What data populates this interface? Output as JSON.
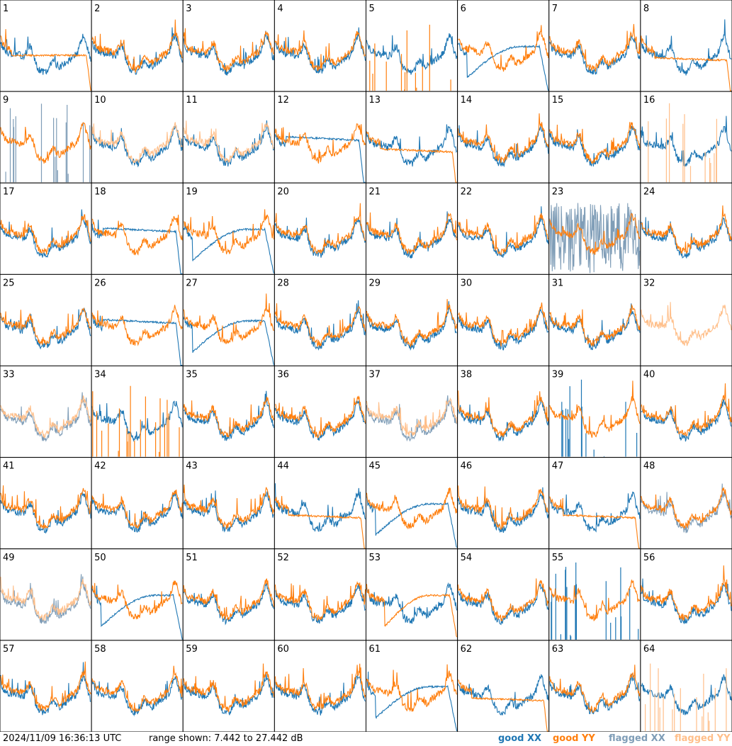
{
  "footer": {
    "timestamp": "2024/11/09 16:36:13 UTC",
    "range_label": "range shown: 7.442 to 27.442 dB"
  },
  "legend": [
    {
      "key": "good_xx",
      "label": "good XX",
      "color": "#1f77b4"
    },
    {
      "key": "good_yy",
      "label": "good YY",
      "color": "#ff7f0e"
    },
    {
      "key": "flagged_xx",
      "label": "flagged XX",
      "color": "#7f9db7"
    },
    {
      "key": "flagged_yy",
      "label": "flagged YY",
      "color": "#ffbf8a"
    }
  ],
  "chart_data": {
    "type": "line",
    "ylim": [
      7.442,
      27.442
    ],
    "grid": {
      "rows": 8,
      "cols": 8
    },
    "panels": [
      {
        "id": "1",
        "xx": "good",
        "yy": "good",
        "pattern": "dip_low"
      },
      {
        "id": "2",
        "xx": "good",
        "yy": "good",
        "pattern": "normal"
      },
      {
        "id": "3",
        "xx": "good",
        "yy": "good",
        "pattern": "normal"
      },
      {
        "id": "4",
        "xx": "good",
        "yy": "good",
        "pattern": "normal"
      },
      {
        "id": "5",
        "xx": "good",
        "yy": "good",
        "pattern": "yy_spikes"
      },
      {
        "id": "6",
        "xx": "good",
        "yy": "good",
        "pattern": "xx_dip"
      },
      {
        "id": "7",
        "xx": "good",
        "yy": "good",
        "pattern": "normal"
      },
      {
        "id": "8",
        "xx": "good",
        "yy": "good",
        "pattern": "yy_flat"
      },
      {
        "id": "9",
        "xx": "flagged",
        "yy": "good",
        "pattern": "xx_spikes"
      },
      {
        "id": "10",
        "xx": "good",
        "yy": "flagged",
        "pattern": "normal"
      },
      {
        "id": "11",
        "xx": "good",
        "yy": "flagged",
        "pattern": "normal"
      },
      {
        "id": "12",
        "xx": "good",
        "yy": "good",
        "pattern": "xx_flat"
      },
      {
        "id": "13",
        "xx": "good",
        "yy": "good",
        "pattern": "yy_flat"
      },
      {
        "id": "14",
        "xx": "good",
        "yy": "good",
        "pattern": "normal"
      },
      {
        "id": "15",
        "xx": "good",
        "yy": "good",
        "pattern": "normal"
      },
      {
        "id": "16",
        "xx": "good",
        "yy": "flagged",
        "pattern": "yy_spikes"
      },
      {
        "id": "17",
        "xx": "good",
        "yy": "good",
        "pattern": "normal"
      },
      {
        "id": "18",
        "xx": "good",
        "yy": "good",
        "pattern": "xx_flat"
      },
      {
        "id": "19",
        "xx": "good",
        "yy": "good",
        "pattern": "xx_dip"
      },
      {
        "id": "20",
        "xx": "good",
        "yy": "good",
        "pattern": "normal"
      },
      {
        "id": "21",
        "xx": "good",
        "yy": "good",
        "pattern": "normal"
      },
      {
        "id": "22",
        "xx": "good",
        "yy": "good",
        "pattern": "normal"
      },
      {
        "id": "23",
        "xx": "flagged",
        "yy": "good",
        "pattern": "xx_noise"
      },
      {
        "id": "24",
        "xx": "good",
        "yy": "good",
        "pattern": "normal"
      },
      {
        "id": "25",
        "xx": "good",
        "yy": "good",
        "pattern": "normal"
      },
      {
        "id": "26",
        "xx": "good",
        "yy": "good",
        "pattern": "xx_flat"
      },
      {
        "id": "27",
        "xx": "good",
        "yy": "good",
        "pattern": "xx_dip"
      },
      {
        "id": "28",
        "xx": "good",
        "yy": "good",
        "pattern": "normal"
      },
      {
        "id": "29",
        "xx": "good",
        "yy": "good",
        "pattern": "normal"
      },
      {
        "id": "30",
        "xx": "good",
        "yy": "good",
        "pattern": "normal"
      },
      {
        "id": "31",
        "xx": "good",
        "yy": "good",
        "pattern": "normal"
      },
      {
        "id": "32",
        "xx": "flagged",
        "yy": "flagged",
        "pattern": "yy_only"
      },
      {
        "id": "33",
        "xx": "flagged",
        "yy": "flagged",
        "pattern": "normal"
      },
      {
        "id": "34",
        "xx": "good",
        "yy": "good",
        "pattern": "yy_spikes"
      },
      {
        "id": "35",
        "xx": "good",
        "yy": "good",
        "pattern": "normal"
      },
      {
        "id": "36",
        "xx": "good",
        "yy": "good",
        "pattern": "normal"
      },
      {
        "id": "37",
        "xx": "flagged",
        "yy": "flagged",
        "pattern": "normal"
      },
      {
        "id": "38",
        "xx": "good",
        "yy": "good",
        "pattern": "normal"
      },
      {
        "id": "39",
        "xx": "good",
        "yy": "good",
        "pattern": "xx_spikes"
      },
      {
        "id": "40",
        "xx": "good",
        "yy": "good",
        "pattern": "normal"
      },
      {
        "id": "41",
        "xx": "good",
        "yy": "good",
        "pattern": "normal"
      },
      {
        "id": "42",
        "xx": "good",
        "yy": "good",
        "pattern": "normal"
      },
      {
        "id": "43",
        "xx": "good",
        "yy": "good",
        "pattern": "normal"
      },
      {
        "id": "44",
        "xx": "good",
        "yy": "good",
        "pattern": "yy_flat"
      },
      {
        "id": "45",
        "xx": "good",
        "yy": "good",
        "pattern": "xx_dip"
      },
      {
        "id": "46",
        "xx": "good",
        "yy": "good",
        "pattern": "normal"
      },
      {
        "id": "47",
        "xx": "good",
        "yy": "good",
        "pattern": "yy_flat"
      },
      {
        "id": "48",
        "xx": "flagged",
        "yy": "good",
        "pattern": "normal"
      },
      {
        "id": "49",
        "xx": "flagged",
        "yy": "flagged",
        "pattern": "normal"
      },
      {
        "id": "50",
        "xx": "good",
        "yy": "good",
        "pattern": "xx_dip"
      },
      {
        "id": "51",
        "xx": "good",
        "yy": "good",
        "pattern": "normal"
      },
      {
        "id": "52",
        "xx": "good",
        "yy": "good",
        "pattern": "normal"
      },
      {
        "id": "53",
        "xx": "good",
        "yy": "good",
        "pattern": "yy_dip"
      },
      {
        "id": "54",
        "xx": "good",
        "yy": "good",
        "pattern": "normal"
      },
      {
        "id": "55",
        "xx": "good",
        "yy": "good",
        "pattern": "xx_spikes"
      },
      {
        "id": "56",
        "xx": "good",
        "yy": "good",
        "pattern": "normal"
      },
      {
        "id": "57",
        "xx": "good",
        "yy": "good",
        "pattern": "normal"
      },
      {
        "id": "58",
        "xx": "good",
        "yy": "good",
        "pattern": "normal"
      },
      {
        "id": "59",
        "xx": "good",
        "yy": "good",
        "pattern": "normal"
      },
      {
        "id": "60",
        "xx": "good",
        "yy": "good",
        "pattern": "normal"
      },
      {
        "id": "61",
        "xx": "good",
        "yy": "good",
        "pattern": "xx_dip"
      },
      {
        "id": "62",
        "xx": "good",
        "yy": "good",
        "pattern": "yy_flat"
      },
      {
        "id": "63",
        "xx": "good",
        "yy": "good",
        "pattern": "normal"
      },
      {
        "id": "64",
        "xx": "good",
        "yy": "flagged",
        "pattern": "yy_spikes"
      }
    ]
  }
}
